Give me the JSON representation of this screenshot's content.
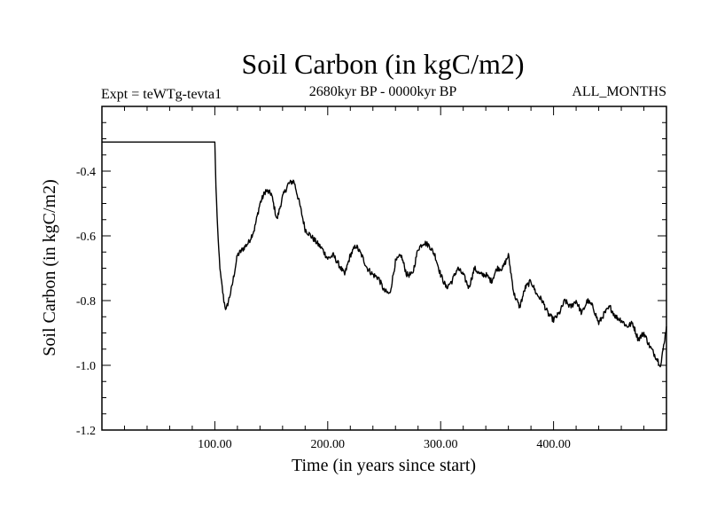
{
  "chart_data": {
    "type": "line",
    "title": "Soil Carbon (in kgC/m2)",
    "subtitle_left": "Expt = teWTg-tevta1",
    "subtitle_center": "2680kyr BP - 0000kyr BP",
    "subtitle_right": "ALL_MONTHS",
    "xlabel": "Time (in years since start)",
    "ylabel": "Soil Carbon (in kgC/m2)",
    "xlim": [
      0,
      500
    ],
    "ylim": [
      -1.2,
      -0.2
    ],
    "xticks": [
      100,
      200,
      300,
      400
    ],
    "xtick_labels": [
      "100.00",
      "200.00",
      "300.00",
      "400.00"
    ],
    "yticks": [
      -0.4,
      -0.6,
      -0.8,
      -1.0,
      -1.2
    ],
    "ytick_labels": [
      "-0.4",
      "-0.6",
      "-0.8",
      "-1.0",
      "-1.2"
    ],
    "grid": false,
    "series": [
      {
        "name": "Soil Carbon",
        "color": "#000000",
        "x": [
          0,
          100,
          101,
          103,
          105,
          108,
          110,
          115,
          120,
          125,
          130,
          135,
          140,
          145,
          150,
          155,
          160,
          165,
          170,
          175,
          180,
          185,
          190,
          195,
          200,
          205,
          210,
          215,
          220,
          225,
          230,
          235,
          240,
          245,
          250,
          255,
          260,
          265,
          270,
          275,
          280,
          285,
          290,
          295,
          300,
          305,
          310,
          315,
          320,
          325,
          330,
          335,
          340,
          345,
          350,
          355,
          360,
          365,
          370,
          375,
          380,
          385,
          390,
          395,
          400,
          405,
          410,
          415,
          420,
          425,
          430,
          435,
          440,
          445,
          450,
          455,
          460,
          465,
          470,
          475,
          480,
          485,
          490,
          495,
          500
        ],
        "values": [
          -0.31,
          -0.31,
          -0.45,
          -0.62,
          -0.72,
          -0.8,
          -0.83,
          -0.76,
          -0.66,
          -0.64,
          -0.62,
          -0.58,
          -0.5,
          -0.46,
          -0.47,
          -0.55,
          -0.48,
          -0.44,
          -0.43,
          -0.5,
          -0.58,
          -0.6,
          -0.62,
          -0.64,
          -0.67,
          -0.66,
          -0.69,
          -0.72,
          -0.66,
          -0.63,
          -0.66,
          -0.7,
          -0.72,
          -0.73,
          -0.77,
          -0.78,
          -0.68,
          -0.66,
          -0.72,
          -0.72,
          -0.64,
          -0.62,
          -0.63,
          -0.66,
          -0.72,
          -0.76,
          -0.74,
          -0.7,
          -0.72,
          -0.76,
          -0.7,
          -0.72,
          -0.72,
          -0.74,
          -0.7,
          -0.7,
          -0.66,
          -0.78,
          -0.82,
          -0.76,
          -0.74,
          -0.78,
          -0.8,
          -0.84,
          -0.86,
          -0.84,
          -0.8,
          -0.82,
          -0.8,
          -0.84,
          -0.8,
          -0.82,
          -0.87,
          -0.84,
          -0.82,
          -0.85,
          -0.86,
          -0.88,
          -0.87,
          -0.92,
          -0.9,
          -0.94,
          -0.97,
          -1.0,
          -0.88
        ]
      }
    ]
  }
}
